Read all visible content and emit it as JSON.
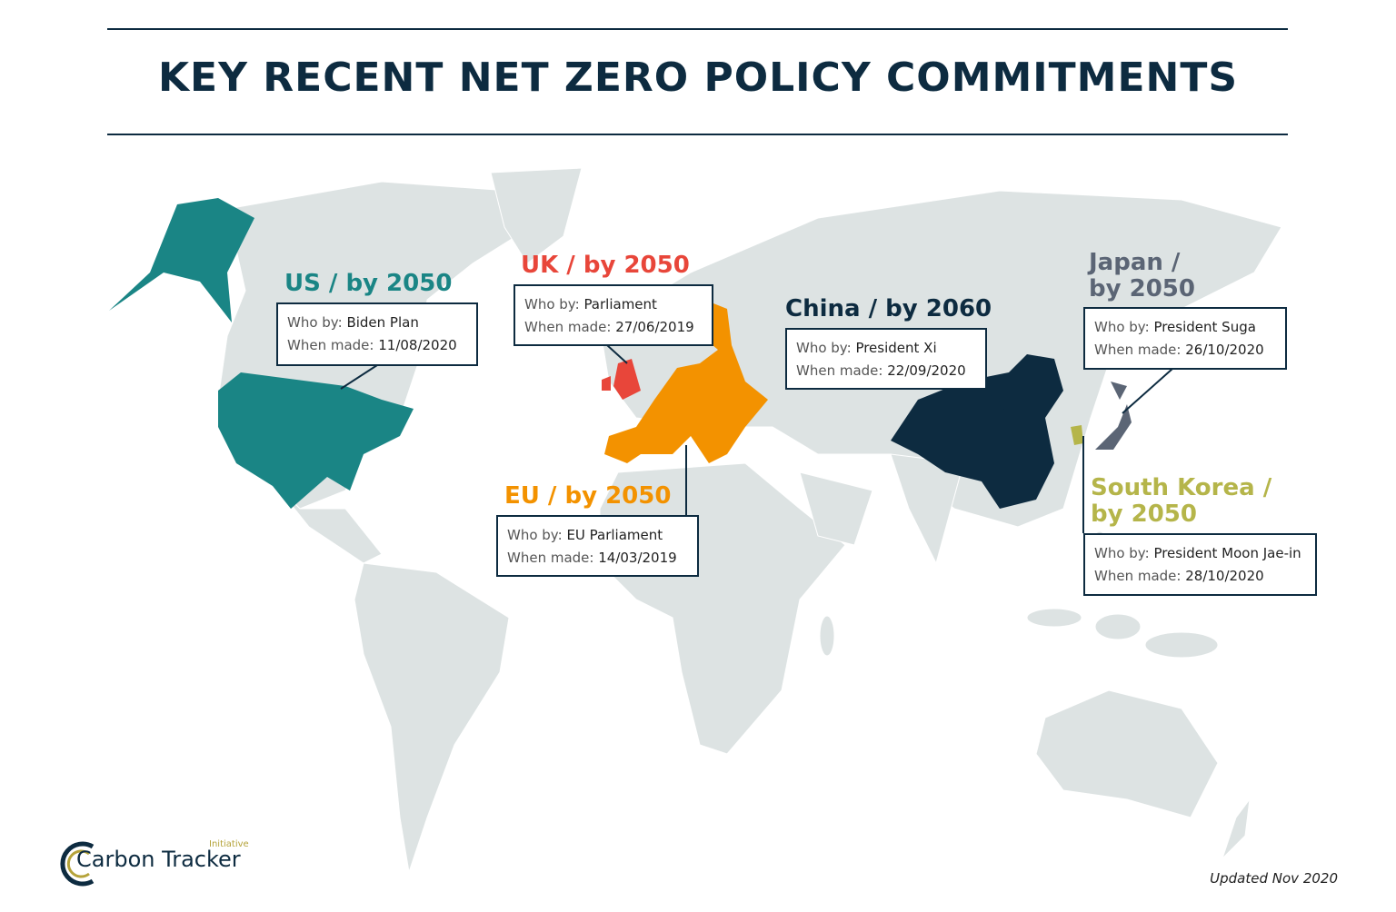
{
  "header": {
    "title": "KEY RECENT NET ZERO POLICY COMMITMENTS"
  },
  "callouts": [
    {
      "heading": "US / by 2050",
      "who_label": "Who by:",
      "who": "Biden Plan",
      "when_label": "When made:",
      "when": "11/08/2020"
    },
    {
      "heading": "UK / by 2050",
      "who_label": "Who by:",
      "who": "Parliament",
      "when_label": "When made:",
      "when": "27/06/2019"
    },
    {
      "heading": "EU / by 2050",
      "who_label": "Who by:",
      "who": "EU Parliament",
      "when_label": "When made:",
      "when": "14/03/2019"
    },
    {
      "heading": "China / by 2060",
      "who_label": "Who by:",
      "who": "President Xi",
      "when_label": "When made:",
      "when": "22/09/2020"
    },
    {
      "heading": "Japan / by 2050",
      "who_label": "Who by:",
      "who": "President Suga",
      "when_label": "When made:",
      "when": "26/10/2020"
    },
    {
      "heading": "South Korea / by 2050",
      "who_label": "Who by:",
      "who": "President Moon Jae-in",
      "when_label": "When made:",
      "when": "28/10/2020"
    }
  ],
  "logo": {
    "name": "Carbon Tracker",
    "tagline": "Initiative"
  },
  "footer": {
    "updated": "Updated Nov 2020"
  }
}
